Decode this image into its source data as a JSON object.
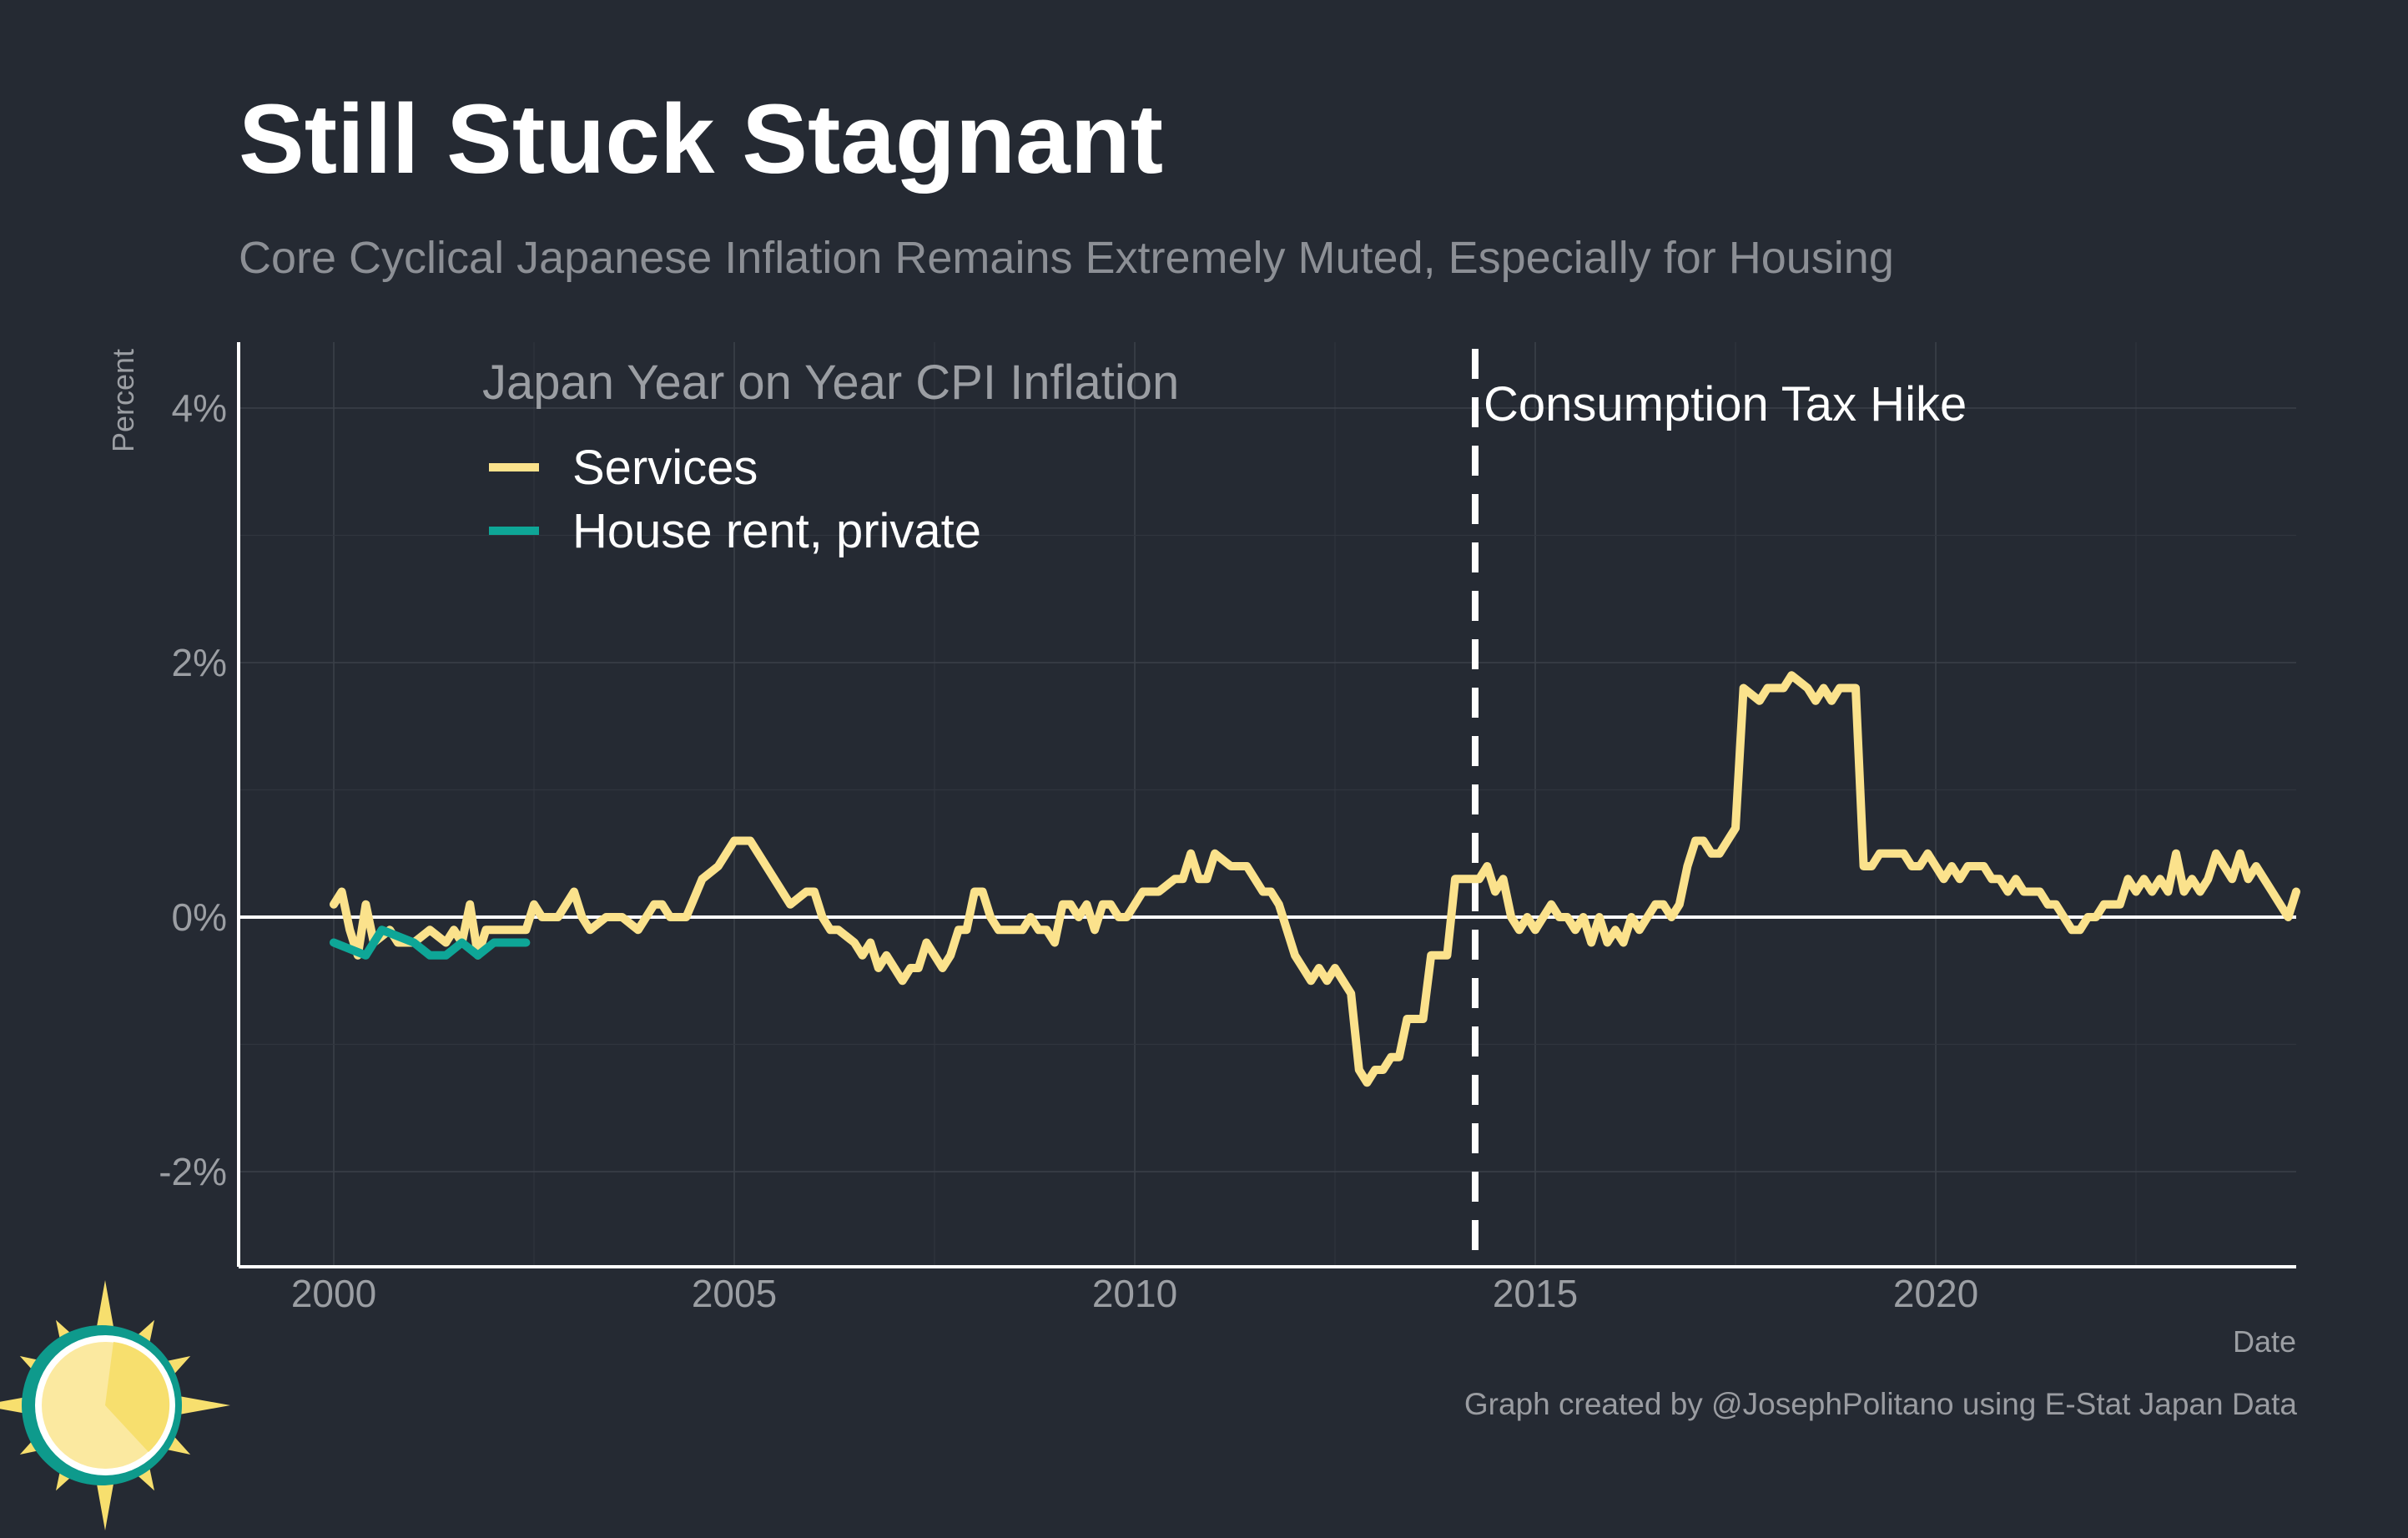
{
  "header": {
    "title": "Still Stuck Stagnant",
    "subtitle": "Core Cyclical Japanese Inflation Remains Extremely Muted, Especially for Housing"
  },
  "caption": "Graph created by @JosephPolitano using E-Stat Japan Data",
  "logo": {
    "icon": "sun-logo-icon",
    "colors": [
      "#f7df6e",
      "#fbe9a0",
      "#0e9a8c"
    ]
  },
  "colors": {
    "background": "#252a33",
    "services": "#fbe28c",
    "rent": "#0ea697",
    "zero_line": "#ffffff",
    "grid": "#3b4049",
    "axis_text": "#9b9ea3"
  },
  "chart_data": {
    "type": "line",
    "legend_title": "Japan Year on Year CPI Inflation",
    "legend_position": "top-left",
    "xlabel": "Date",
    "ylabel": "Percent",
    "xlim": [
      1998.8,
      2024.7
    ],
    "ylim": [
      -2.75,
      4.5
    ],
    "x_ticks": [
      2000,
      2005,
      2010,
      2015,
      2020
    ],
    "x_tick_labels": [
      "2000",
      "2005",
      "2010",
      "2015",
      "2020"
    ],
    "y_ticks": [
      -2,
      0,
      2,
      4
    ],
    "y_tick_labels": [
      "-2%",
      "0%",
      "2%",
      "4%"
    ],
    "grid": true,
    "annotation": {
      "x": 2014.25,
      "label": "Consumption Tax Hike",
      "style": "dashed-vertical"
    },
    "series": [
      {
        "name": "Services",
        "color": "#fbe28c",
        "points": [
          [
            2000.0,
            0.1
          ],
          [
            2000.1,
            0.2
          ],
          [
            2000.2,
            -0.1
          ],
          [
            2000.3,
            -0.3
          ],
          [
            2000.4,
            0.1
          ],
          [
            2000.5,
            -0.2
          ],
          [
            2000.7,
            -0.1
          ],
          [
            2000.8,
            -0.2
          ],
          [
            2001.0,
            -0.2
          ],
          [
            2001.2,
            -0.1
          ],
          [
            2001.4,
            -0.2
          ],
          [
            2001.5,
            -0.1
          ],
          [
            2001.6,
            -0.2
          ],
          [
            2001.7,
            0.1
          ],
          [
            2001.8,
            -0.3
          ],
          [
            2001.9,
            -0.1
          ],
          [
            2002.2,
            -0.1
          ],
          [
            2002.4,
            -0.1
          ],
          [
            2002.5,
            0.1
          ],
          [
            2002.6,
            0.0
          ],
          [
            2002.8,
            0.0
          ],
          [
            2003.0,
            0.2
          ],
          [
            2003.1,
            0.0
          ],
          [
            2003.2,
            -0.1
          ],
          [
            2003.4,
            0.0
          ],
          [
            2003.6,
            0.0
          ],
          [
            2003.8,
            -0.1
          ],
          [
            2004.0,
            0.1
          ],
          [
            2004.1,
            0.1
          ],
          [
            2004.2,
            0.0
          ],
          [
            2004.4,
            0.0
          ],
          [
            2004.6,
            0.3
          ],
          [
            2004.8,
            0.4
          ],
          [
            2005.0,
            0.6
          ],
          [
            2005.2,
            0.6
          ],
          [
            2005.4,
            0.4
          ],
          [
            2005.7,
            0.1
          ],
          [
            2005.9,
            0.2
          ],
          [
            2006.0,
            0.2
          ],
          [
            2006.1,
            0.0
          ],
          [
            2006.2,
            -0.1
          ],
          [
            2006.3,
            -0.1
          ],
          [
            2006.5,
            -0.2
          ],
          [
            2006.6,
            -0.3
          ],
          [
            2006.7,
            -0.2
          ],
          [
            2006.8,
            -0.4
          ],
          [
            2006.9,
            -0.3
          ],
          [
            2007.0,
            -0.4
          ],
          [
            2007.1,
            -0.5
          ],
          [
            2007.2,
            -0.4
          ],
          [
            2007.3,
            -0.4
          ],
          [
            2007.4,
            -0.2
          ],
          [
            2007.6,
            -0.4
          ],
          [
            2007.7,
            -0.3
          ],
          [
            2007.8,
            -0.1
          ],
          [
            2007.9,
            -0.1
          ],
          [
            2008.0,
            0.2
          ],
          [
            2008.1,
            0.2
          ],
          [
            2008.2,
            0.0
          ],
          [
            2008.3,
            -0.1
          ],
          [
            2008.5,
            -0.1
          ],
          [
            2008.6,
            -0.1
          ],
          [
            2008.7,
            0.0
          ],
          [
            2008.8,
            -0.1
          ],
          [
            2008.9,
            -0.1
          ],
          [
            2009.0,
            -0.2
          ],
          [
            2009.1,
            0.1
          ],
          [
            2009.2,
            0.1
          ],
          [
            2009.3,
            0.0
          ],
          [
            2009.4,
            0.1
          ],
          [
            2009.5,
            -0.1
          ],
          [
            2009.6,
            0.1
          ],
          [
            2009.7,
            0.1
          ],
          [
            2009.8,
            0.0
          ],
          [
            2009.9,
            0.0
          ],
          [
            2010.0,
            0.1
          ],
          [
            2010.1,
            0.2
          ],
          [
            2010.3,
            0.2
          ],
          [
            2010.5,
            0.3
          ],
          [
            2010.6,
            0.3
          ],
          [
            2010.7,
            0.5
          ],
          [
            2010.8,
            0.3
          ],
          [
            2010.9,
            0.3
          ],
          [
            2011.0,
            0.5
          ],
          [
            2011.2,
            0.4
          ],
          [
            2011.4,
            0.4
          ],
          [
            2011.6,
            0.2
          ],
          [
            2011.7,
            0.2
          ],
          [
            2011.8,
            0.1
          ],
          [
            2011.9,
            -0.1
          ],
          [
            2012.0,
            -0.3
          ],
          [
            2012.1,
            -0.4
          ],
          [
            2012.2,
            -0.5
          ],
          [
            2012.3,
            -0.4
          ],
          [
            2012.4,
            -0.5
          ],
          [
            2012.5,
            -0.4
          ],
          [
            2012.6,
            -0.5
          ],
          [
            2012.7,
            -0.6
          ],
          [
            2012.8,
            -1.2
          ],
          [
            2012.9,
            -1.3
          ],
          [
            2013.0,
            -1.2
          ],
          [
            2013.1,
            -1.2
          ],
          [
            2013.2,
            -1.1
          ],
          [
            2013.3,
            -1.1
          ],
          [
            2013.4,
            -0.8
          ],
          [
            2013.6,
            -0.8
          ],
          [
            2013.7,
            -0.3
          ],
          [
            2013.9,
            -0.3
          ],
          [
            2014.0,
            0.3
          ],
          [
            2014.1,
            0.3
          ],
          [
            2014.2,
            0.3
          ],
          [
            2014.3,
            0.3
          ],
          [
            2014.4,
            0.4
          ],
          [
            2014.5,
            0.2
          ],
          [
            2014.6,
            0.3
          ],
          [
            2014.7,
            0.0
          ],
          [
            2014.8,
            -0.1
          ],
          [
            2014.9,
            0.0
          ],
          [
            2015.0,
            -0.1
          ],
          [
            2015.1,
            0.0
          ],
          [
            2015.2,
            0.1
          ],
          [
            2015.3,
            0.0
          ],
          [
            2015.4,
            0.0
          ],
          [
            2015.5,
            -0.1
          ],
          [
            2015.6,
            0.0
          ],
          [
            2015.7,
            -0.2
          ],
          [
            2015.8,
            0.0
          ],
          [
            2015.9,
            -0.2
          ],
          [
            2016.0,
            -0.1
          ],
          [
            2016.1,
            -0.2
          ],
          [
            2016.2,
            0.0
          ],
          [
            2016.3,
            -0.1
          ],
          [
            2016.4,
            0.0
          ],
          [
            2016.5,
            0.1
          ],
          [
            2016.6,
            0.1
          ],
          [
            2016.7,
            0.0
          ],
          [
            2016.8,
            0.1
          ],
          [
            2016.9,
            0.4
          ],
          [
            2017.0,
            0.6
          ],
          [
            2017.1,
            0.6
          ],
          [
            2017.2,
            0.5
          ],
          [
            2017.3,
            0.5
          ],
          [
            2017.4,
            0.6
          ],
          [
            2017.5,
            0.7
          ],
          [
            2017.6,
            1.8
          ],
          [
            2017.8,
            1.7
          ],
          [
            2017.9,
            1.8
          ],
          [
            2018.0,
            1.8
          ],
          [
            2018.1,
            1.8
          ],
          [
            2018.2,
            1.9
          ],
          [
            2018.4,
            1.8
          ],
          [
            2018.5,
            1.7
          ],
          [
            2018.6,
            1.8
          ],
          [
            2018.7,
            1.7
          ],
          [
            2018.8,
            1.8
          ],
          [
            2019.0,
            1.8
          ],
          [
            2019.1,
            0.4
          ],
          [
            2019.2,
            0.4
          ],
          [
            2019.3,
            0.5
          ],
          [
            2019.5,
            0.5
          ],
          [
            2019.6,
            0.5
          ],
          [
            2019.7,
            0.4
          ],
          [
            2019.8,
            0.4
          ],
          [
            2019.9,
            0.5
          ],
          [
            2020.0,
            0.4
          ],
          [
            2020.1,
            0.3
          ],
          [
            2020.2,
            0.4
          ],
          [
            2020.3,
            0.3
          ],
          [
            2020.4,
            0.4
          ],
          [
            2020.6,
            0.4
          ],
          [
            2020.7,
            0.3
          ],
          [
            2020.8,
            0.3
          ],
          [
            2020.9,
            0.2
          ],
          [
            2021.0,
            0.3
          ],
          [
            2021.1,
            0.2
          ],
          [
            2021.3,
            0.2
          ],
          [
            2021.4,
            0.1
          ],
          [
            2021.5,
            0.1
          ],
          [
            2021.6,
            0.0
          ],
          [
            2021.7,
            -0.1
          ],
          [
            2021.8,
            -0.1
          ],
          [
            2021.9,
            0.0
          ],
          [
            2022.0,
            0.0
          ],
          [
            2022.1,
            0.1
          ],
          [
            2022.2,
            0.1
          ],
          [
            2022.3,
            0.1
          ],
          [
            2022.4,
            0.3
          ],
          [
            2022.5,
            0.2
          ],
          [
            2022.6,
            0.3
          ],
          [
            2022.7,
            0.2
          ],
          [
            2022.8,
            0.3
          ],
          [
            2022.9,
            0.2
          ],
          [
            2023.0,
            0.5
          ],
          [
            2023.1,
            0.2
          ],
          [
            2023.2,
            0.3
          ],
          [
            2023.3,
            0.2
          ],
          [
            2023.4,
            0.3
          ],
          [
            2023.5,
            0.5
          ],
          [
            2023.6,
            0.4
          ],
          [
            2023.7,
            0.3
          ],
          [
            2023.8,
            0.5
          ],
          [
            2023.9,
            0.3
          ],
          [
            2024.0,
            0.4
          ],
          [
            2024.1,
            0.3
          ],
          [
            2024.2,
            0.2
          ],
          [
            2024.3,
            0.1
          ],
          [
            2024.4,
            0.0
          ],
          [
            2024.5,
            0.2
          ]
        ]
      },
      {
        "name": "House rent, private",
        "color": "#0ea697",
        "points": [
          [
            2000.0,
            -0.2
          ],
          [
            2000.4,
            -0.3
          ],
          [
            2000.6,
            -0.1
          ],
          [
            2001.0,
            -0.2
          ],
          [
            2001.2,
            -0.3
          ],
          [
            2001.4,
            -0.3
          ],
          [
            2001.6,
            -0.2
          ],
          [
            2001.8,
            -0.3
          ],
          [
            2002.0,
            -0.2
          ],
          [
            2002.4,
            -0.2
          ]
        ]
      }
    ]
  }
}
